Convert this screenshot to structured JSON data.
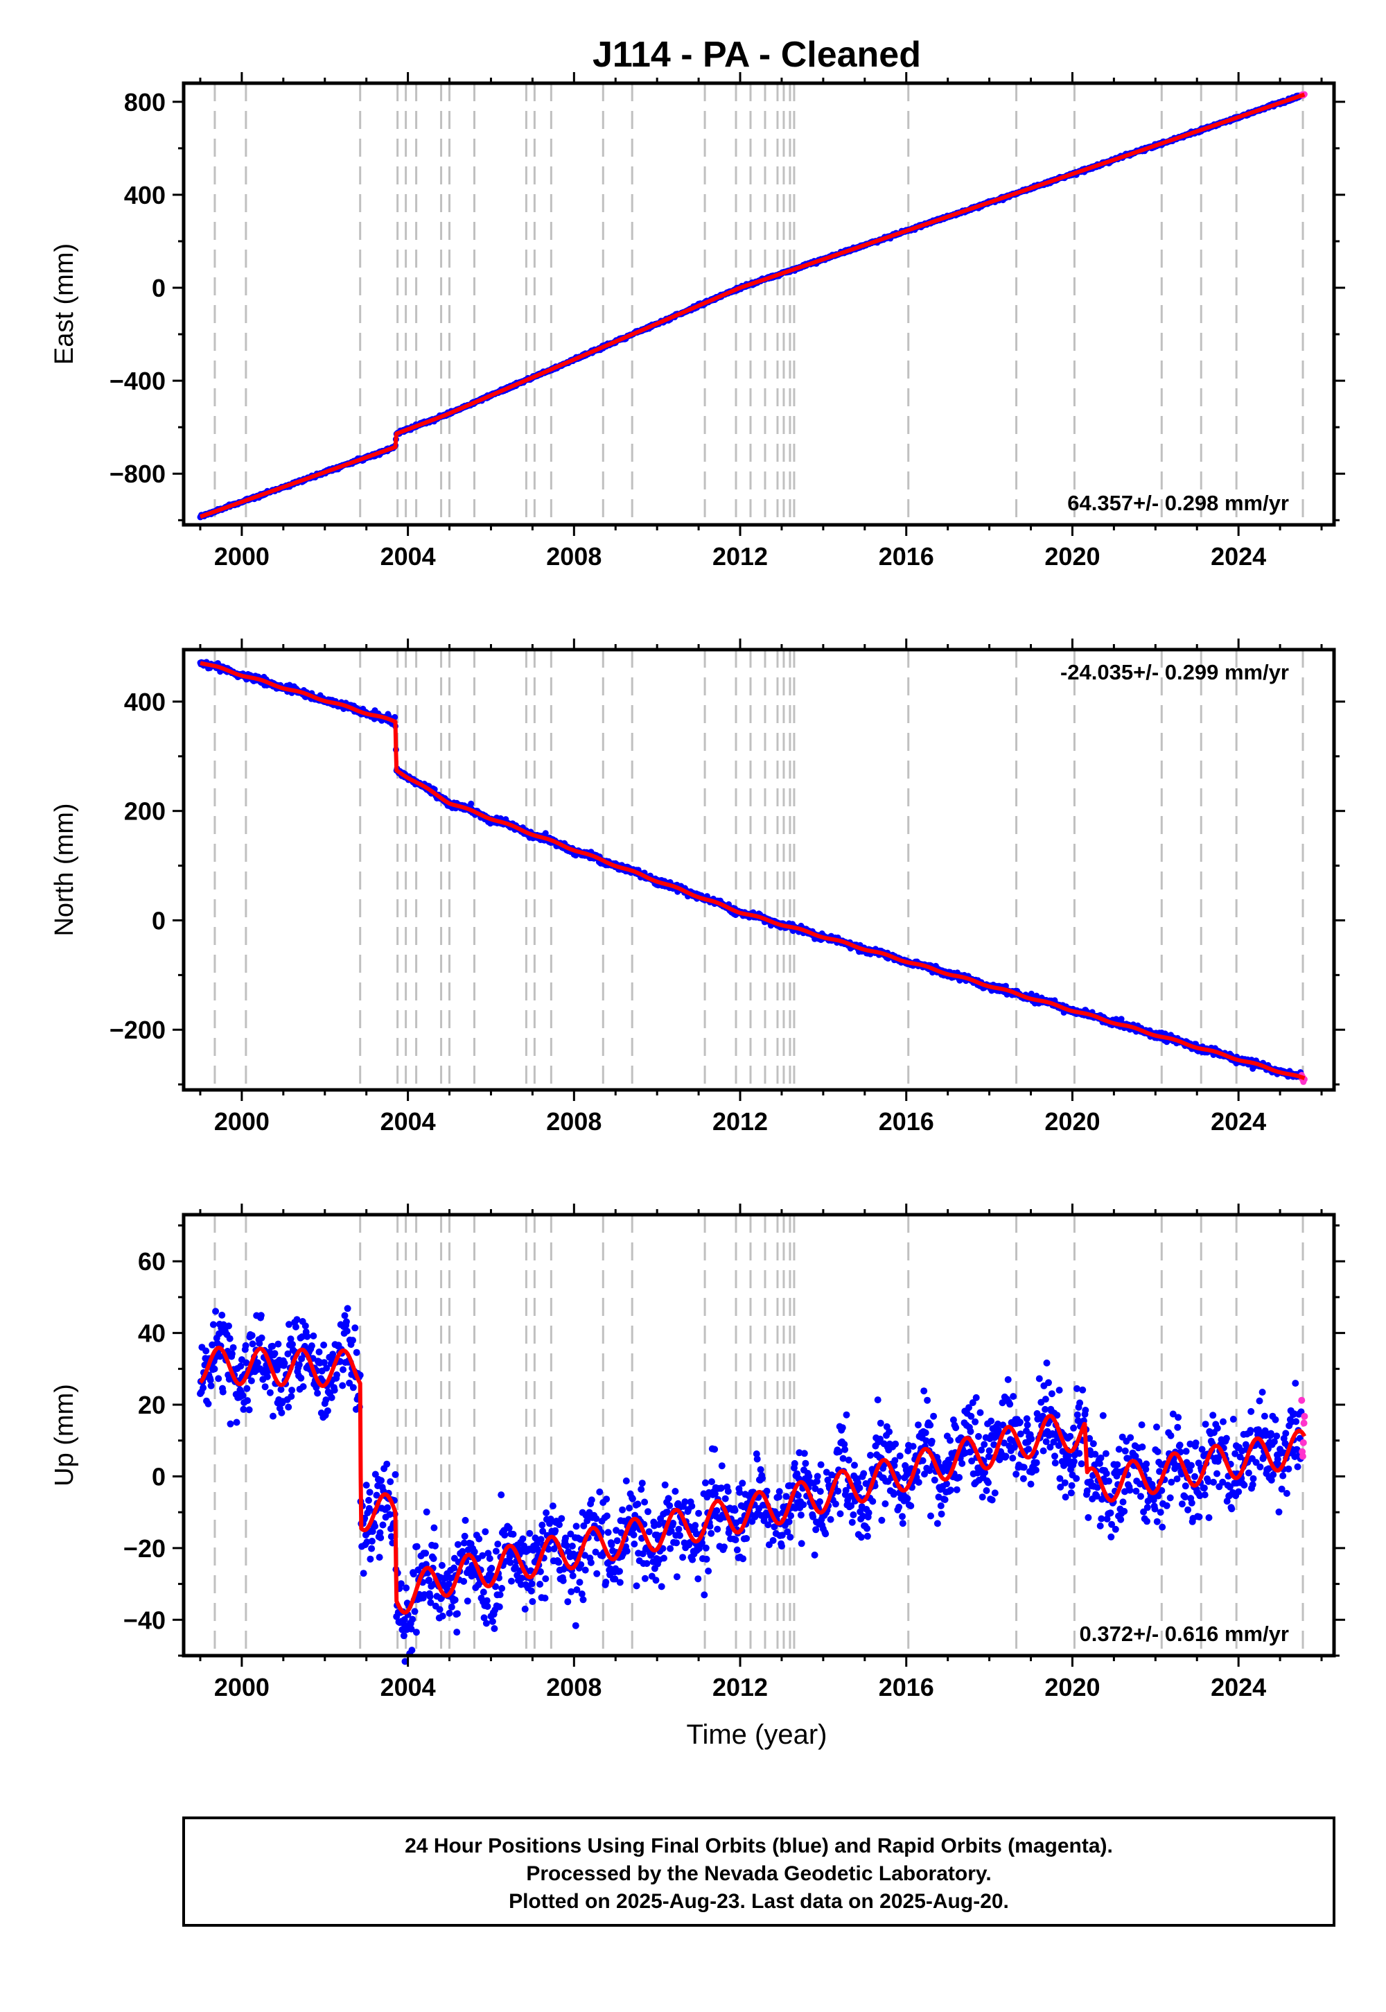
{
  "figure": {
    "title": "J114  - PA - Cleaned",
    "xlabel": "Time (year)",
    "footer_lines": [
      "24 Hour Positions Using Final Orbits (blue) and Rapid Orbits (magenta).",
      "Processed by the Nevada Geodetic Laboratory.",
      "Plotted on 2025-Aug-23. Last data on 2025-Aug-20."
    ]
  },
  "colors": {
    "final_points": "#0000ff",
    "rapid_points": "#ff33cc",
    "model_line": "#ff0000",
    "event_lines": "#c0c0c0",
    "frame": "#000000"
  },
  "chart_data": [
    {
      "type": "scatter",
      "ylabel": "East (mm)",
      "rate_label": "64.357+/- 0.298 mm/yr",
      "rate_position": "bottom-right",
      "xlim": [
        1998.6,
        2026.3
      ],
      "ylim": [
        -1020,
        880
      ],
      "x_ticks": [
        2000,
        2004,
        2008,
        2012,
        2016,
        2020,
        2024
      ],
      "y_ticks": [
        -800,
        -400,
        0,
        400,
        800
      ],
      "y_tick_labels": [
        "−800",
        "−400",
        "0",
        "400",
        "800"
      ],
      "start_year": 1999.0,
      "end_year": 2025.6,
      "trend_knots": [
        [
          1999.0,
          -985
        ],
        [
          2003.7,
          -685
        ],
        [
          2003.72,
          -628
        ],
        [
          2004.9,
          -548
        ],
        [
          2012.0,
          0
        ],
        [
          2025.6,
          832
        ]
      ],
      "seasonal_amplitude": 0,
      "noise": 3,
      "point_radius": 4.5
    },
    {
      "type": "scatter",
      "ylabel": "North (mm)",
      "rate_label": "-24.035+/- 0.299 mm/yr",
      "rate_position": "top-right",
      "xlim": [
        1998.6,
        2026.3
      ],
      "ylim": [
        -310,
        495
      ],
      "x_ticks": [
        2000,
        2004,
        2008,
        2012,
        2016,
        2020,
        2024
      ],
      "y_ticks": [
        -200,
        0,
        200,
        400
      ],
      "y_tick_labels": [
        "−200",
        "0",
        "200",
        "400"
      ],
      "start_year": 1999.0,
      "end_year": 2025.6,
      "trend_knots": [
        [
          1999.0,
          472
        ],
        [
          2003.7,
          363
        ],
        [
          2003.72,
          275
        ],
        [
          2005.0,
          215
        ],
        [
          2012.0,
          15
        ],
        [
          2025.6,
          -290
        ]
      ],
      "seasonal_amplitude": 1.5,
      "noise": 3,
      "point_radius": 4.5
    },
    {
      "type": "scatter",
      "ylabel": "Up (mm)",
      "rate_label": "0.372+/- 0.616 mm/yr",
      "rate_position": "bottom-right",
      "xlim": [
        1998.6,
        2026.3
      ],
      "ylim": [
        -50,
        73
      ],
      "x_ticks": [
        2000,
        2004,
        2008,
        2012,
        2016,
        2020,
        2024
      ],
      "y_ticks": [
        -40,
        -20,
        0,
        20,
        40,
        60
      ],
      "y_tick_labels": [
        "−40",
        "−20",
        "0",
        "20",
        "40",
        "60"
      ],
      "start_year": 1999.0,
      "end_year": 2025.6,
      "trend_knots": [
        [
          1999.0,
          31
        ],
        [
          2002.85,
          30
        ],
        [
          2002.87,
          -10
        ],
        [
          2003.7,
          -10
        ],
        [
          2003.72,
          -34
        ],
        [
          2005.0,
          -28
        ],
        [
          2013.0,
          -8
        ],
        [
          2019.5,
          12
        ],
        [
          2020.3,
          12
        ],
        [
          2020.35,
          -3
        ],
        [
          2025.6,
          8
        ]
      ],
      "seasonal_amplitude": 5,
      "noise": 6,
      "point_radius": 5
    }
  ],
  "event_years": [
    1999.35,
    2000.1,
    2002.85,
    2003.75,
    2003.95,
    2004.2,
    2004.8,
    2005.0,
    2005.6,
    2006.85,
    2007.05,
    2007.45,
    2008.7,
    2009.4,
    2011.15,
    2011.9,
    2012.25,
    2012.6,
    2012.9,
    2013.05,
    2013.2,
    2013.3,
    2016.05,
    2018.65,
    2020.05,
    2022.15,
    2023.1,
    2023.95,
    2025.55
  ]
}
